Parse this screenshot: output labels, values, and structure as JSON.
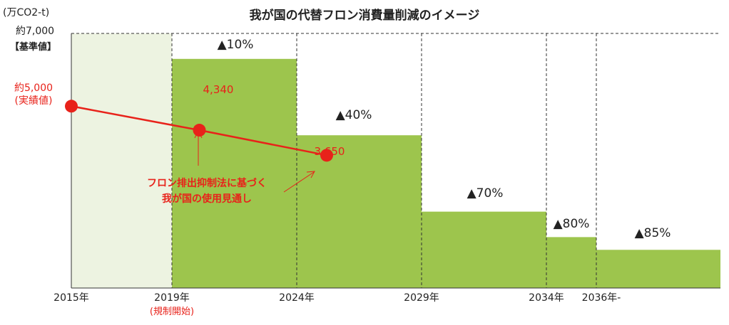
{
  "chart_data": {
    "type": "bar",
    "title": "我が国の代替フロン消費量削減のイメージ",
    "ylabel": "(万CO2-t)",
    "y_top_label": "約7,000",
    "y_top_sublabel": "【基準値】",
    "ylim": [
      0,
      7000
    ],
    "x_ticks": [
      "2015年",
      "2019年",
      "2024年",
      "2029年",
      "2034年",
      "2036年-"
    ],
    "x_tick_note": "(規制開始)",
    "steps": [
      {
        "from": 2015,
        "to": 2019,
        "value": 7000,
        "label": ""
      },
      {
        "from": 2019,
        "to": 2024,
        "value": 6300,
        "label": "▲10%"
      },
      {
        "from": 2024,
        "to": 2029,
        "value": 4200,
        "label": "▲40%"
      },
      {
        "from": 2029,
        "to": 2034,
        "value": 2100,
        "label": "▲70%"
      },
      {
        "from": 2034,
        "to": 2036,
        "value": 1400,
        "label": "▲80%"
      },
      {
        "from": 2036,
        "to": 2041,
        "value": 1050,
        "label": "▲85%"
      }
    ],
    "series": [
      {
        "name": "フロン排出抑制法に基づく我が国の使用見通し",
        "points": [
          {
            "x": 2015,
            "y": 5000,
            "label": "約5,000",
            "sublabel": "(実績値)"
          },
          {
            "x": 2020.1,
            "y": 4340,
            "label": "4,340"
          },
          {
            "x": 2025.2,
            "y": 3650,
            "label": "3,650"
          }
        ]
      }
    ],
    "annotation_lines": [
      "フロン排出抑制法に基づく",
      "我が国の使用見通し"
    ],
    "colors": {
      "bar": "#9dc54d",
      "baseline_bar": "#edf3e1",
      "line": "#e8221a"
    }
  }
}
